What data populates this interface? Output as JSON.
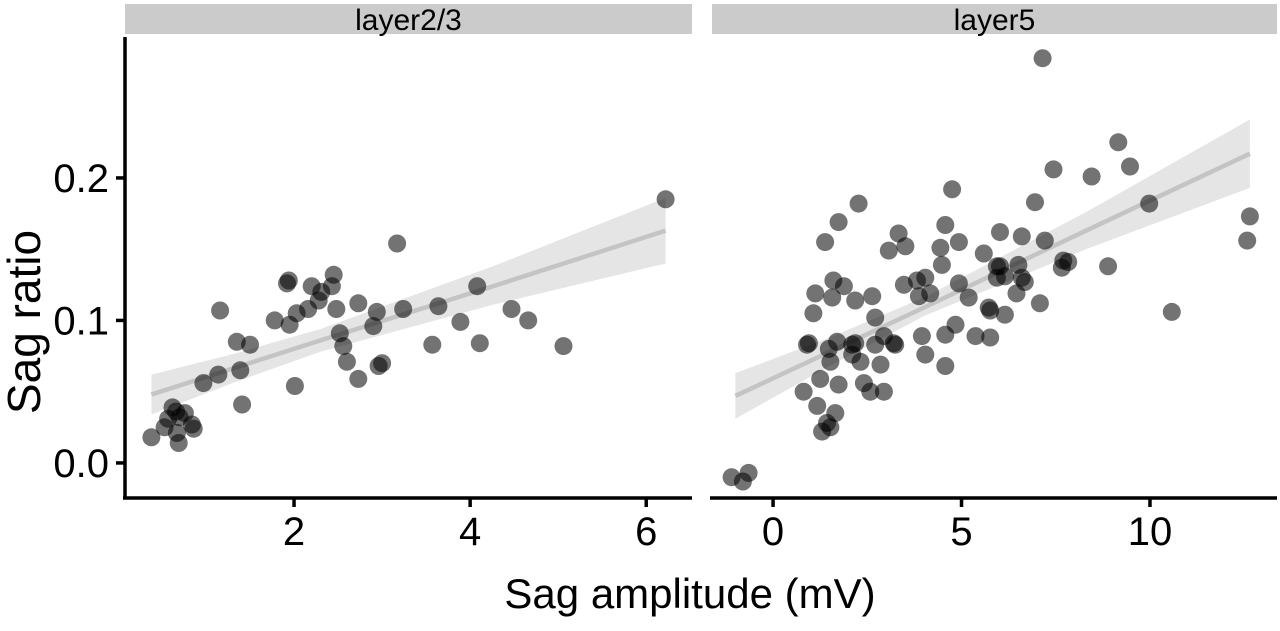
{
  "figure": {
    "x_axis_title": "Sag amplitude (mV)",
    "y_axis_title": "Sag ratio",
    "facets": [
      "layer2/3",
      "layer5"
    ]
  },
  "style": {
    "point_color": "#000000",
    "point_opacity": 0.55,
    "point_radius": 9,
    "line_color": "#c4c4c4",
    "band_color": "#000000",
    "band_opacity": 0.1,
    "strip_fill": "#cbcbcb",
    "axis_color": "#000000",
    "text_color": "#000000",
    "background": "#ffffff"
  },
  "chart_data": [
    {
      "type": "scatter",
      "title": "layer2/3",
      "xlabel": "Sag amplitude (mV)",
      "ylabel": "Sag ratio",
      "xlim": [
        0.08,
        6.52
      ],
      "ylim": [
        -0.0246,
        0.2982
      ],
      "grid": false,
      "x_ticks": [
        {
          "value": 2,
          "label": "2"
        },
        {
          "value": 4,
          "label": "4"
        },
        {
          "value": 6,
          "label": "6"
        }
      ],
      "y_ticks": [
        {
          "value": 0.0,
          "label": "0.0"
        },
        {
          "value": 0.1,
          "label": "0.1"
        },
        {
          "value": 0.2,
          "label": "0.2"
        }
      ],
      "points": [
        [
          0.38,
          0.018
        ],
        [
          0.53,
          0.025
        ],
        [
          0.57,
          0.031
        ],
        [
          0.62,
          0.039
        ],
        [
          0.66,
          0.036
        ],
        [
          0.7,
          0.032
        ],
        [
          0.76,
          0.035
        ],
        [
          0.67,
          0.021
        ],
        [
          0.69,
          0.014
        ],
        [
          0.84,
          0.027
        ],
        [
          0.86,
          0.024
        ],
        [
          0.97,
          0.056
        ],
        [
          1.14,
          0.062
        ],
        [
          1.16,
          0.107
        ],
        [
          1.35,
          0.085
        ],
        [
          1.39,
          0.065
        ],
        [
          1.41,
          0.041
        ],
        [
          1.5,
          0.083
        ],
        [
          1.78,
          0.1
        ],
        [
          1.92,
          0.126
        ],
        [
          1.94,
          0.128
        ],
        [
          1.95,
          0.097
        ],
        [
          2.01,
          0.054
        ],
        [
          2.03,
          0.105
        ],
        [
          2.16,
          0.108
        ],
        [
          2.2,
          0.124
        ],
        [
          2.28,
          0.114
        ],
        [
          2.31,
          0.12
        ],
        [
          2.43,
          0.124
        ],
        [
          2.45,
          0.132
        ],
        [
          2.48,
          0.108
        ],
        [
          2.52,
          0.091
        ],
        [
          2.56,
          0.082
        ],
        [
          2.6,
          0.071
        ],
        [
          2.73,
          0.112
        ],
        [
          2.73,
          0.059
        ],
        [
          2.9,
          0.096
        ],
        [
          2.94,
          0.106
        ],
        [
          2.96,
          0.068
        ],
        [
          3.0,
          0.07
        ],
        [
          3.17,
          0.154
        ],
        [
          3.24,
          0.108
        ],
        [
          3.57,
          0.083
        ],
        [
          3.64,
          0.11
        ],
        [
          3.89,
          0.099
        ],
        [
          4.08,
          0.124
        ],
        [
          4.11,
          0.084
        ],
        [
          4.47,
          0.108
        ],
        [
          4.66,
          0.1
        ],
        [
          5.06,
          0.082
        ],
        [
          6.22,
          0.185
        ]
      ],
      "regression": {
        "x_samples": [
          0.38,
          1.34,
          2.3,
          4.26,
          6.22
        ],
        "line": [
          0.048,
          0.067,
          0.086,
          0.124,
          0.163
        ],
        "upper": [
          0.062,
          0.077,
          0.094,
          0.138,
          0.186
        ],
        "lower": [
          0.034,
          0.057,
          0.078,
          0.111,
          0.14
        ]
      }
    },
    {
      "type": "scatter",
      "title": "layer5",
      "xlabel": "Sag amplitude (mV)",
      "ylabel": "Sag ratio",
      "xlim": [
        -1.62,
        13.37
      ],
      "ylim": [
        -0.0246,
        0.2982
      ],
      "grid": false,
      "x_ticks": [
        {
          "value": 0,
          "label": "0"
        },
        {
          "value": 5,
          "label": "5"
        },
        {
          "value": 10,
          "label": "10"
        }
      ],
      "y_ticks": [
        {
          "value": 0.0,
          "label": "0.0"
        },
        {
          "value": 0.1,
          "label": "0.1"
        },
        {
          "value": 0.2,
          "label": "0.2"
        }
      ],
      "points": [
        [
          -1.1,
          -0.01
        ],
        [
          -0.8,
          -0.013
        ],
        [
          -0.65,
          -0.007
        ],
        [
          0.81,
          0.05
        ],
        [
          0.9,
          0.083
        ],
        [
          0.95,
          0.084
        ],
        [
          1.07,
          0.105
        ],
        [
          1.12,
          0.119
        ],
        [
          1.17,
          0.04
        ],
        [
          1.25,
          0.059
        ],
        [
          1.3,
          0.022
        ],
        [
          1.38,
          0.155
        ],
        [
          1.43,
          0.028
        ],
        [
          1.48,
          0.08
        ],
        [
          1.52,
          0.071
        ],
        [
          1.52,
          0.025
        ],
        [
          1.57,
          0.116
        ],
        [
          1.6,
          0.128
        ],
        [
          1.65,
          0.035
        ],
        [
          1.7,
          0.085
        ],
        [
          1.74,
          0.169
        ],
        [
          1.74,
          0.055
        ],
        [
          1.88,
          0.124
        ],
        [
          2.1,
          0.076
        ],
        [
          2.1,
          0.083
        ],
        [
          2.18,
          0.114
        ],
        [
          2.18,
          0.084
        ],
        [
          2.27,
          0.182
        ],
        [
          2.32,
          0.071
        ],
        [
          2.41,
          0.056
        ],
        [
          2.58,
          0.05
        ],
        [
          2.63,
          0.117
        ],
        [
          2.71,
          0.102
        ],
        [
          2.71,
          0.083
        ],
        [
          2.85,
          0.069
        ],
        [
          2.94,
          0.089
        ],
        [
          2.94,
          0.05
        ],
        [
          3.07,
          0.149
        ],
        [
          3.2,
          0.084
        ],
        [
          3.24,
          0.083
        ],
        [
          3.33,
          0.161
        ],
        [
          3.47,
          0.125
        ],
        [
          3.51,
          0.152
        ],
        [
          3.82,
          0.128
        ],
        [
          3.87,
          0.117
        ],
        [
          3.95,
          0.089
        ],
        [
          4.04,
          0.13
        ],
        [
          4.04,
          0.076
        ],
        [
          4.17,
          0.119
        ],
        [
          4.44,
          0.151
        ],
        [
          4.48,
          0.139
        ],
        [
          4.57,
          0.167
        ],
        [
          4.57,
          0.09
        ],
        [
          4.57,
          0.068
        ],
        [
          4.75,
          0.192
        ],
        [
          4.84,
          0.097
        ],
        [
          4.93,
          0.155
        ],
        [
          4.93,
          0.126
        ],
        [
          5.19,
          0.116
        ],
        [
          5.37,
          0.089
        ],
        [
          5.59,
          0.147
        ],
        [
          5.72,
          0.109
        ],
        [
          5.76,
          0.107
        ],
        [
          5.76,
          0.088
        ],
        [
          5.94,
          0.138
        ],
        [
          5.94,
          0.13
        ],
        [
          6.02,
          0.162
        ],
        [
          6.02,
          0.138
        ],
        [
          6.15,
          0.131
        ],
        [
          6.15,
          0.104
        ],
        [
          6.46,
          0.119
        ],
        [
          6.51,
          0.139
        ],
        [
          6.6,
          0.159
        ],
        [
          6.6,
          0.13
        ],
        [
          6.68,
          0.127
        ],
        [
          6.95,
          0.183
        ],
        [
          7.08,
          0.112
        ],
        [
          7.15,
          0.284
        ],
        [
          7.21,
          0.156
        ],
        [
          7.44,
          0.206
        ],
        [
          7.66,
          0.137
        ],
        [
          7.7,
          0.142
        ],
        [
          7.83,
          0.141
        ],
        [
          8.45,
          0.201
        ],
        [
          8.89,
          0.138
        ],
        [
          9.16,
          0.225
        ],
        [
          9.47,
          0.208
        ],
        [
          9.98,
          0.182
        ],
        [
          10.58,
          0.106
        ],
        [
          12.58,
          0.156
        ],
        [
          12.65,
          0.173
        ]
      ],
      "regression": {
        "x_samples": [
          -1.0,
          1.5,
          4.0,
          8.3,
          12.65
        ],
        "line": [
          0.047,
          0.078,
          0.109,
          0.163,
          0.217
        ],
        "upper": [
          0.063,
          0.088,
          0.116,
          0.176,
          0.241
        ],
        "lower": [
          0.031,
          0.068,
          0.103,
          0.15,
          0.193
        ]
      }
    }
  ]
}
